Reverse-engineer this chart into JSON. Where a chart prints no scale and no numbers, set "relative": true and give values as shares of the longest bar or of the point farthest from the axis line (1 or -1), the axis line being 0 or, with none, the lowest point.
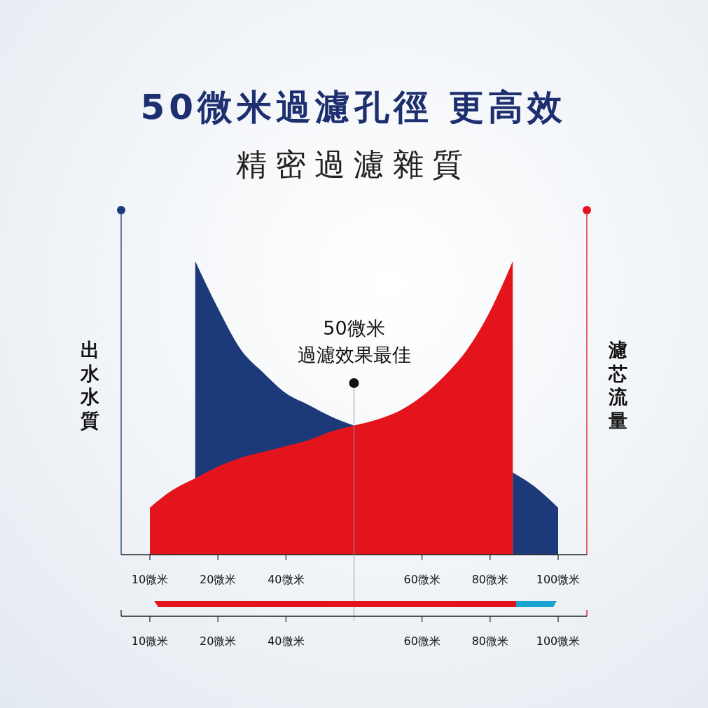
{
  "chart_data": [
    {
      "type": "area",
      "title": "50微米過濾孔徑 更高效",
      "subtitle": "精密過濾雜質",
      "ylabel": "出水水質",
      "y2label": "濾芯流量",
      "annotations": [
        "50微米",
        "過濾效果最佳"
      ],
      "relative": true,
      "categories": [
        "10微米",
        null,
        null,
        "20微米",
        null,
        null,
        "40微米",
        null,
        null,
        null,
        null,
        null,
        "60微米",
        null,
        null,
        "80微米",
        null,
        null,
        "100微米"
      ],
      "series": [
        {
          "color": "#1c3a7a",
          "values": [
            null,
            null,
            1,
            0.84,
            0.7,
            0.62,
            0.55,
            0.51,
            0.47,
            0.44,
            null,
            null,
            null,
            null,
            null,
            null,
            0.28,
            0.23,
            0.16
          ]
        },
        {
          "color": "#e3141b",
          "axis": "y2",
          "values": [
            0.16,
            0.22,
            0.26,
            0.3,
            0.33,
            0.35,
            0.37,
            0.39,
            0.42,
            0.44,
            0.46,
            0.49,
            0.54,
            0.61,
            0.7,
            0.83,
            1,
            null,
            null
          ]
        }
      ]
    },
    {
      "type": "other",
      "categories": [
        "10微米",
        "20微米",
        "40微米",
        null,
        "60微米",
        "80微米",
        "100微米"
      ]
    }
  ]
}
